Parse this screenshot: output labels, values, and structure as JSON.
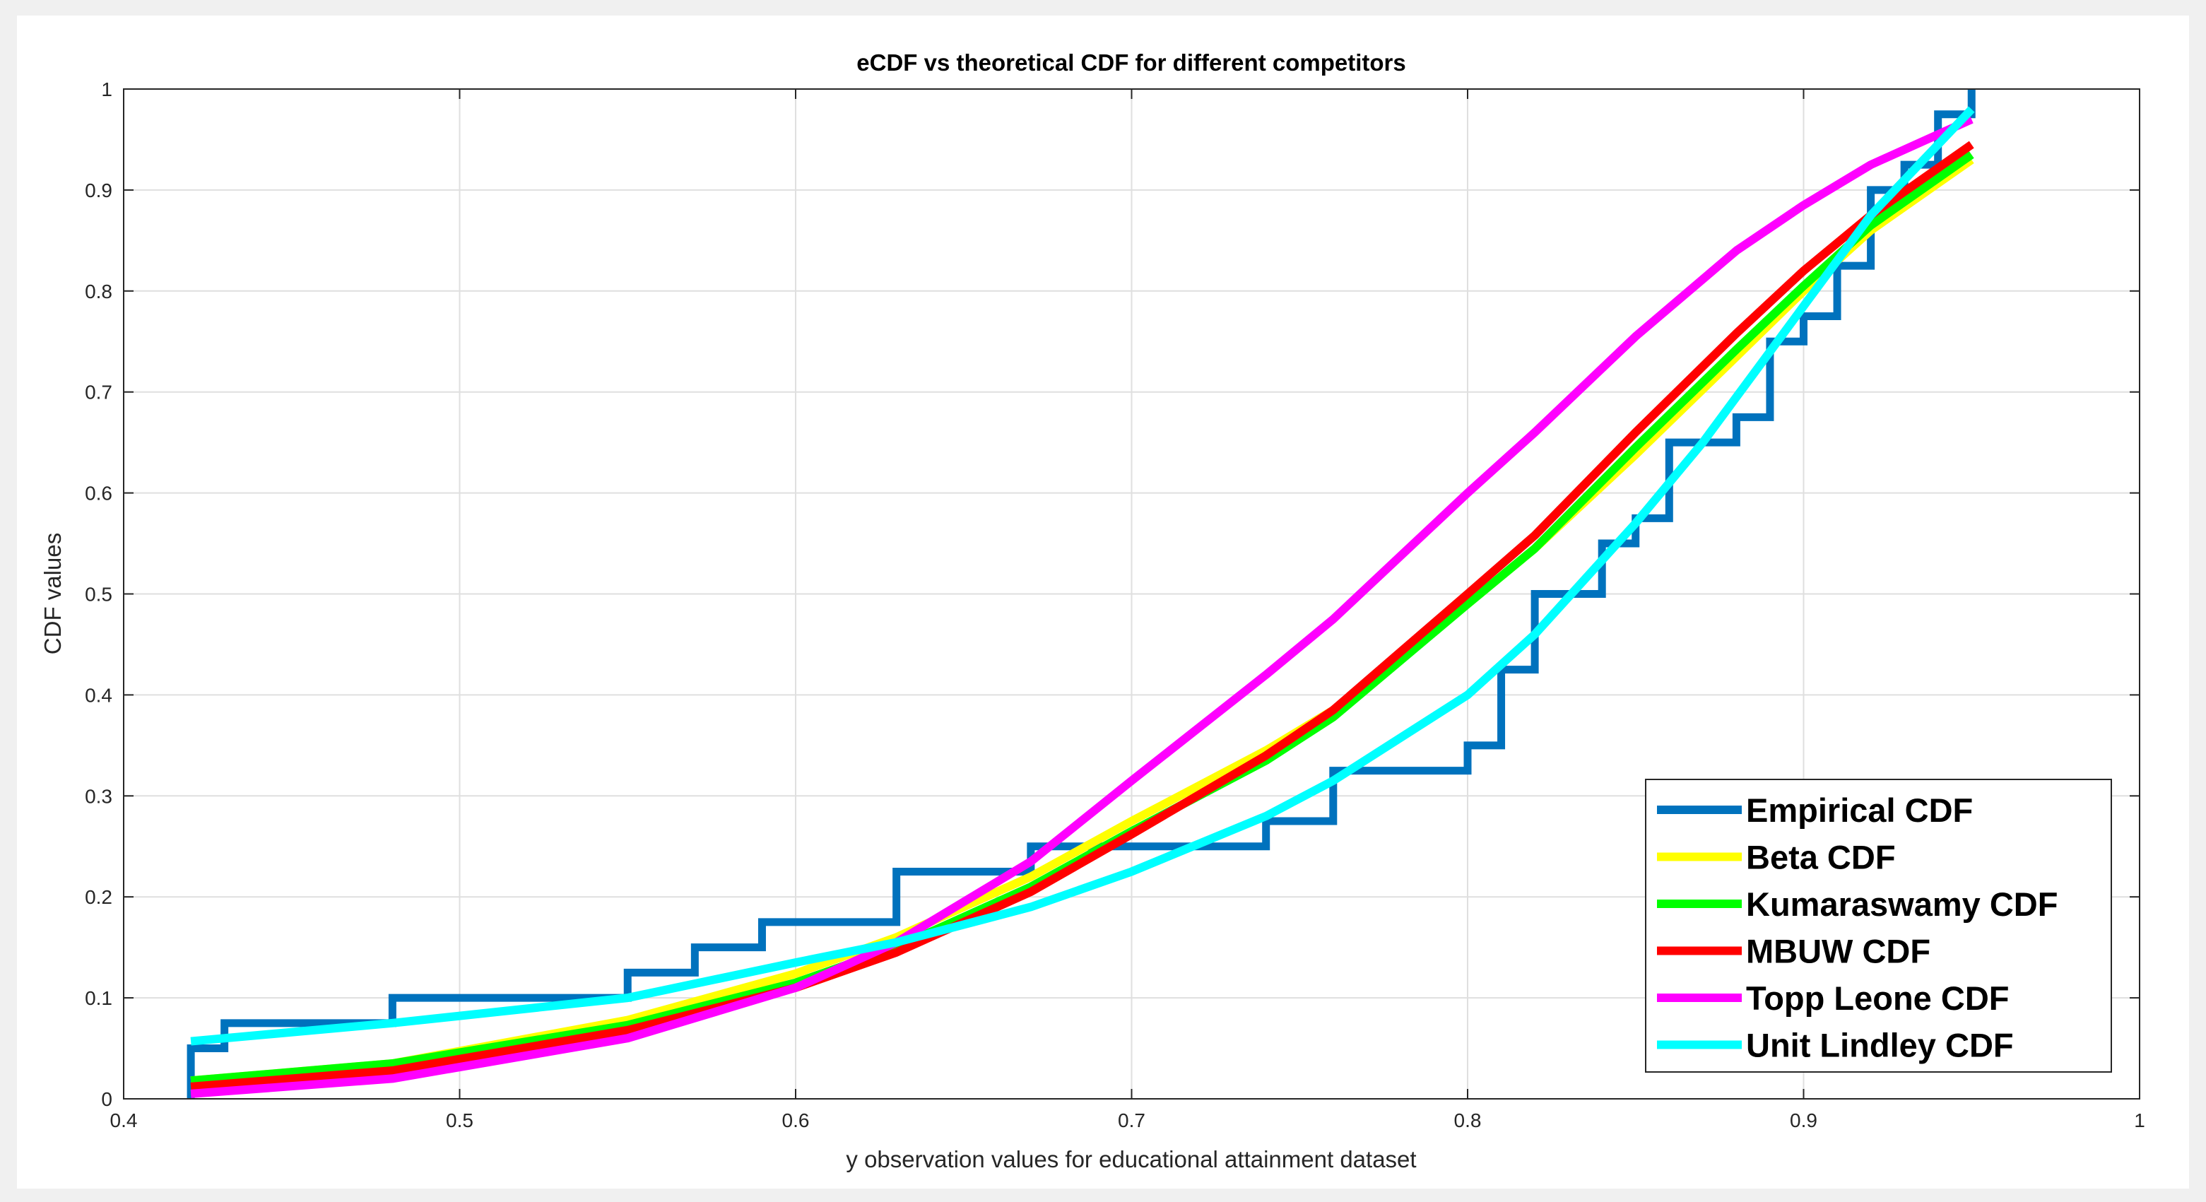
{
  "chart_data": {
    "type": "line",
    "title": "eCDF vs theoretical CDF for different competitors",
    "xlabel": "y observation values for educational attainment dataset",
    "ylabel": "CDF values",
    "xlim": [
      0.4,
      1
    ],
    "ylim": [
      0,
      1
    ],
    "grid": true,
    "legend_position": "bottom-right",
    "x_ticks": [
      0.4,
      0.5,
      0.6,
      0.7,
      0.8,
      0.9,
      1
    ],
    "x_tick_labels": [
      "0.4",
      "0.5",
      "0.6",
      "0.7",
      "0.8",
      "0.9",
      "1"
    ],
    "y_ticks": [
      0,
      0.1,
      0.2,
      0.3,
      0.4,
      0.5,
      0.6,
      0.7,
      0.8,
      0.9,
      1
    ],
    "y_tick_labels": [
      "0",
      "0.1",
      "0.2",
      "0.3",
      "0.4",
      "0.5",
      "0.6",
      "0.7",
      "0.8",
      "0.9",
      "1"
    ],
    "series": [
      {
        "name": "Empirical CDF",
        "color": "#0072bd",
        "kind": "stairs",
        "x": [
          0.42,
          0.42,
          0.43,
          0.48,
          0.55,
          0.57,
          0.59,
          0.63,
          0.67,
          0.68,
          0.74,
          0.76,
          0.8,
          0.81,
          0.82,
          0.84,
          0.85,
          0.86,
          0.88,
          0.89,
          0.9,
          0.91,
          0.92,
          0.93,
          0.94,
          0.95
        ],
        "y": [
          0,
          0.05,
          0.075,
          0.1,
          0.125,
          0.15,
          0.175,
          0.225,
          0.25,
          0.25,
          0.275,
          0.325,
          0.35,
          0.425,
          0.5,
          0.55,
          0.575,
          0.65,
          0.675,
          0.75,
          0.775,
          0.825,
          0.9,
          0.925,
          0.975,
          1.0
        ]
      },
      {
        "name": "Beta CDF",
        "color": "#ffff00",
        "x": [
          0.42,
          0.48,
          0.55,
          0.6,
          0.63,
          0.67,
          0.7,
          0.74,
          0.76,
          0.8,
          0.82,
          0.85,
          0.88,
          0.9,
          0.92,
          0.95
        ],
        "y": [
          0.018,
          0.035,
          0.078,
          0.124,
          0.16,
          0.22,
          0.275,
          0.345,
          0.385,
          0.49,
          0.545,
          0.638,
          0.735,
          0.8,
          0.86,
          0.93
        ]
      },
      {
        "name": "Kumaraswamy CDF",
        "color": "#00ff00",
        "x": [
          0.42,
          0.48,
          0.55,
          0.6,
          0.63,
          0.67,
          0.7,
          0.74,
          0.76,
          0.8,
          0.82,
          0.85,
          0.88,
          0.9,
          0.92,
          0.95
        ],
        "y": [
          0.018,
          0.035,
          0.073,
          0.115,
          0.15,
          0.21,
          0.265,
          0.335,
          0.378,
          0.49,
          0.545,
          0.645,
          0.742,
          0.805,
          0.865,
          0.935
        ]
      },
      {
        "name": "MBUW CDF",
        "color": "#ff0000",
        "x": [
          0.42,
          0.48,
          0.55,
          0.6,
          0.63,
          0.67,
          0.7,
          0.74,
          0.76,
          0.8,
          0.82,
          0.85,
          0.88,
          0.9,
          0.92,
          0.95
        ],
        "y": [
          0.012,
          0.028,
          0.068,
          0.11,
          0.145,
          0.205,
          0.262,
          0.34,
          0.385,
          0.5,
          0.558,
          0.66,
          0.758,
          0.82,
          0.875,
          0.945
        ]
      },
      {
        "name": "Topp Leone CDF",
        "color": "#ff00ff",
        "x": [
          0.42,
          0.48,
          0.55,
          0.6,
          0.63,
          0.67,
          0.7,
          0.74,
          0.76,
          0.8,
          0.82,
          0.85,
          0.88,
          0.9,
          0.92,
          0.95
        ],
        "y": [
          0.005,
          0.02,
          0.06,
          0.11,
          0.155,
          0.235,
          0.315,
          0.42,
          0.475,
          0.6,
          0.66,
          0.755,
          0.84,
          0.885,
          0.925,
          0.97
        ]
      },
      {
        "name": "Unit Lindley CDF",
        "color": "#00ffff",
        "x": [
          0.42,
          0.48,
          0.55,
          0.6,
          0.63,
          0.67,
          0.7,
          0.74,
          0.76,
          0.8,
          0.82,
          0.85,
          0.87,
          0.88,
          0.9,
          0.92,
          0.95
        ],
        "y": [
          0.057,
          0.075,
          0.1,
          0.135,
          0.155,
          0.19,
          0.225,
          0.28,
          0.315,
          0.4,
          0.46,
          0.57,
          0.65,
          0.695,
          0.785,
          0.875,
          0.98
        ]
      }
    ]
  }
}
